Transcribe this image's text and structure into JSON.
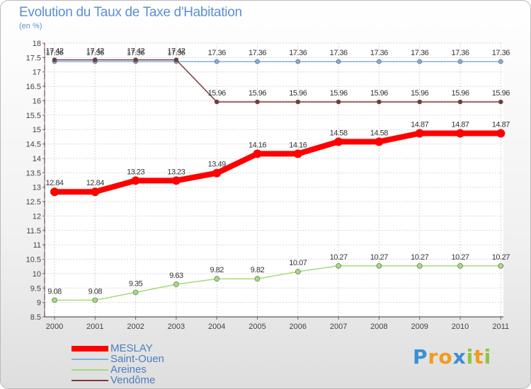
{
  "chart_data": {
    "type": "line",
    "title": "Evolution du Taux de Taxe d'Habitation",
    "subtitle": "(en %)",
    "xlabel": "",
    "ylabel": "",
    "ylim": [
      8.5,
      18
    ],
    "grid": true,
    "legend_position": "bottom-left",
    "categories": [
      "2000",
      "2001",
      "2002",
      "2003",
      "2004",
      "2005",
      "2006",
      "2007",
      "2008",
      "2009",
      "2010",
      "2011"
    ],
    "y_ticks": [
      "8.5",
      "9",
      "9.5",
      "10",
      "10.5",
      "11",
      "11.5",
      "12",
      "12.5",
      "13",
      "13.5",
      "14",
      "14.5",
      "15",
      "15.5",
      "16",
      "16.5",
      "17",
      "17.5",
      "18"
    ],
    "series": [
      {
        "name": "MESLAY",
        "color": "#ff0000",
        "values": [
          12.84,
          12.84,
          13.23,
          13.23,
          13.49,
          14.16,
          14.16,
          14.58,
          14.58,
          14.87,
          14.87,
          14.87
        ],
        "labels": [
          "12.84",
          "12.84",
          "13.23",
          "13.23",
          "13.49",
          "14.16",
          "14.16",
          "14.58",
          "14.58",
          "14.87",
          "14.87",
          "14.87"
        ]
      },
      {
        "name": "Saint-Ouen",
        "color": "#7fb2e0",
        "values": [
          17.36,
          17.36,
          17.36,
          17.36,
          17.36,
          17.36,
          17.36,
          17.36,
          17.36,
          17.36,
          17.36,
          17.36
        ],
        "labels": [
          "17.36",
          "17.36",
          "17.36",
          "17.36",
          "17.36",
          "17.36",
          "17.36",
          "17.36",
          "17.36",
          "17.36",
          "17.36",
          "17.36"
        ]
      },
      {
        "name": "Areines",
        "color": "#a3dc7a",
        "values": [
          9.08,
          9.08,
          9.35,
          9.63,
          9.82,
          9.82,
          10.07,
          10.27,
          10.27,
          10.27,
          10.27,
          10.27
        ],
        "labels": [
          "9.08",
          "9.08",
          "9.35",
          "9.63",
          "9.82",
          "9.82",
          "10.07",
          "10.27",
          "10.27",
          "10.27",
          "10.27",
          "10.27"
        ]
      },
      {
        "name": "Vendôme",
        "color": "#7b3a3a",
        "values": [
          17.42,
          17.42,
          17.42,
          17.42,
          15.96,
          15.96,
          15.96,
          15.96,
          15.96,
          15.96,
          15.96,
          15.96
        ],
        "labels": [
          "17.42",
          "17.42",
          "17.42",
          "17.42",
          "15.96",
          "15.96",
          "15.96",
          "15.96",
          "15.96",
          "15.96",
          "15.96",
          "15.96"
        ]
      }
    ]
  },
  "logo": {
    "letters": [
      "P",
      "r",
      "o",
      "x",
      "i",
      "t",
      "i"
    ],
    "colors": [
      "#3a8fd6",
      "#f39a1e",
      "#f39a1e",
      "#3a8fd6",
      "#8cc63f",
      "#f39a1e",
      "#8cc63f"
    ]
  }
}
